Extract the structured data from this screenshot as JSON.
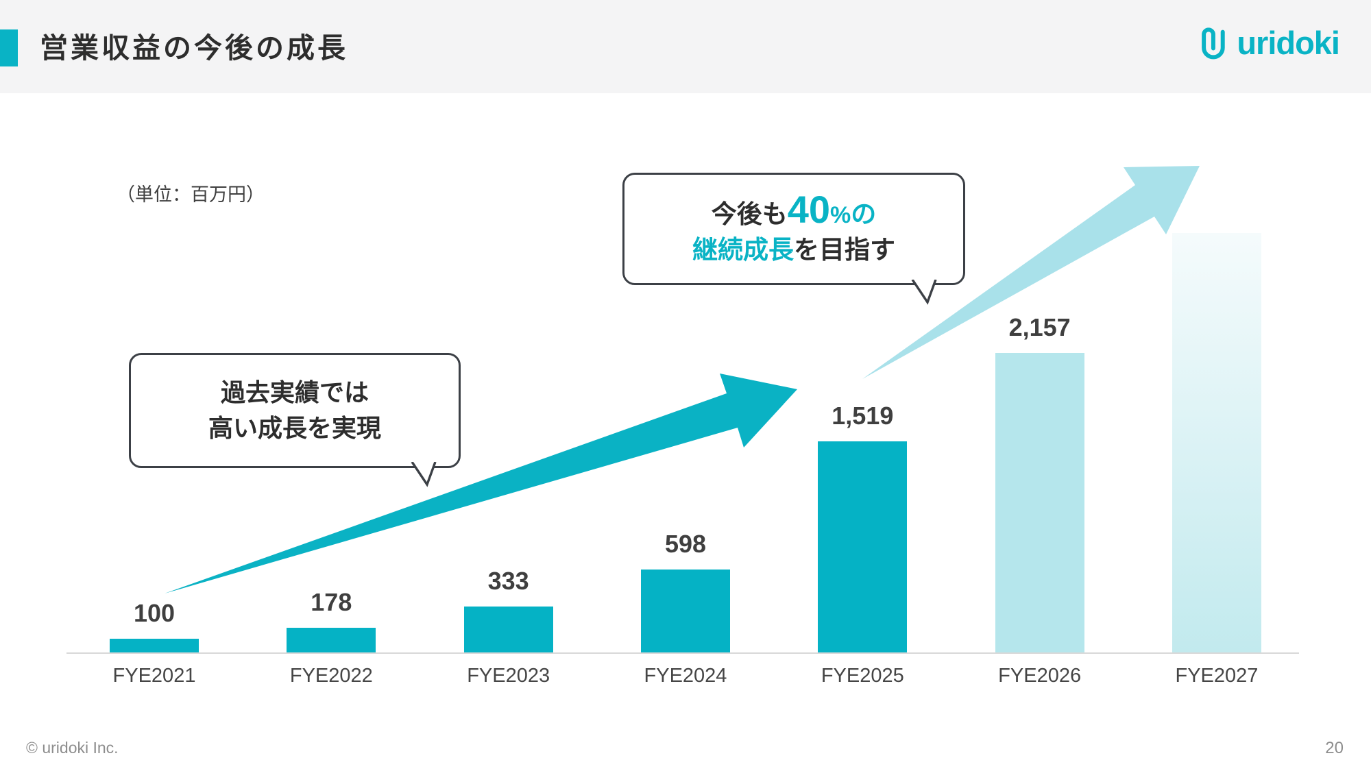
{
  "colors": {
    "accent": "#09b3c5",
    "bar_solid": "#05b2c5",
    "bar_light": "#b5e6ec",
    "bar_gradient_top": "#f5fbfc",
    "bar_gradient_bottom": "#c2eaee",
    "arrow_solid": "#0ab2c4",
    "arrow_light": "#a9e1ea",
    "header_band": "#f4f4f5",
    "text_dark": "#2d2d2d",
    "text_label": "#3f3f3f",
    "text_axis": "#454545",
    "text_muted": "#8d8d8d",
    "bubble_border": "#3c4046",
    "baseline": "#d8d8d8"
  },
  "header": {
    "title": "営業収益の今後の成長",
    "logo_text": "uridoki"
  },
  "chart": {
    "unit_label": "（単位：百万円）"
  },
  "bubbles": {
    "past": {
      "line1": "過去実績では",
      "line2": "高い成長を実現"
    },
    "future": {
      "pre": "今後も",
      "big": "40",
      "pct": "%",
      "post": "の",
      "line2_highlight": "継続成長",
      "line2_rest": "を目指す"
    }
  },
  "footer": {
    "copyright": "© uridoki Inc.",
    "page": "20"
  },
  "chart_data": {
    "type": "bar",
    "title": "営業収益の今後の成長",
    "unit": "百万円",
    "categories": [
      "FYE2021",
      "FYE2022",
      "FYE2023",
      "FYE2024",
      "FYE2025",
      "FYE2026",
      "FYE2027"
    ],
    "values": [
      100,
      178,
      333,
      598,
      1519,
      2157,
      null
    ],
    "value_labels": [
      "100",
      "178",
      "333",
      "598",
      "1,519",
      "2,157",
      ""
    ],
    "bar_styles": [
      "solid",
      "solid",
      "solid",
      "solid",
      "solid",
      "light",
      "gradient"
    ],
    "ylim": [
      0,
      3100
    ],
    "grid": false,
    "legend": false,
    "annotations": [
      "過去実績では高い成長を実現",
      "今後も40%の継続成長を目指す"
    ]
  }
}
